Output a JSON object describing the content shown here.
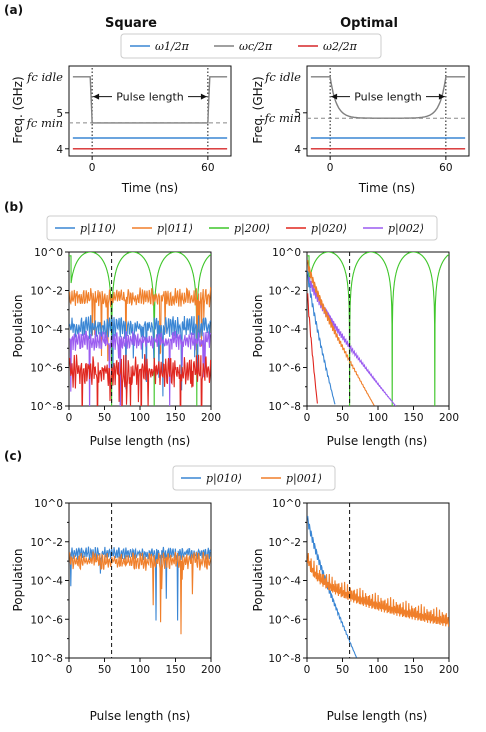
{
  "colors": {
    "blue": "#3a86d4",
    "gray": "#808080",
    "red": "#d62728",
    "orange": "#f07f2a",
    "green": "#3fc62a",
    "red2": "#e0261f",
    "purple": "#9b5cf0"
  },
  "labels": {
    "panel_a": "(a)",
    "panel_b": "(b)",
    "panel_c": "(c)",
    "title_square": "Square",
    "title_optimal": "Optimal",
    "ylabel_freq": "Freq. (GHz)",
    "ylabel_pop": "Population",
    "xlabel_time": "Time (ns)",
    "xlabel_pulse": "Pulse length (ns)",
    "pulse_length": "Pulse length",
    "fc_idle": "fc idle",
    "fc_min": "fc min"
  },
  "legend_a": [
    {
      "label": "ω1/2π",
      "color": "#3a86d4"
    },
    {
      "label": "ωc/2π",
      "color": "#808080"
    },
    {
      "label": "ω2/2π",
      "color": "#d62728"
    }
  ],
  "legend_b": [
    {
      "label": "p|110⟩",
      "color": "#3a86d4"
    },
    {
      "label": "p|011⟩",
      "color": "#f07f2a"
    },
    {
      "label": "p|200⟩",
      "color": "#3fc62a"
    },
    {
      "label": "p|020⟩",
      "color": "#e0261f"
    },
    {
      "label": "p|002⟩",
      "color": "#9b5cf0"
    }
  ],
  "legend_c": [
    {
      "label": "p|010⟩",
      "color": "#3a86d4"
    },
    {
      "label": "p|001⟩",
      "color": "#f07f2a"
    }
  ],
  "chart_data": [
    {
      "type": "line",
      "panel": "a-square",
      "title": "Square",
      "xlabel": "Time (ns)",
      "ylabel": "Freq. (GHz)",
      "xticks": [
        "0",
        "60"
      ],
      "yticks": [
        "4",
        "5"
      ],
      "ylim": [
        3.8,
        6.3
      ],
      "fc_idle": 6.0,
      "fc_min": 4.72,
      "series": [
        {
          "name": "ω1/2π",
          "value": 4.3
        },
        {
          "name": "ωc/2π",
          "shape": "square",
          "low": 4.72,
          "high": 6.0
        },
        {
          "name": "ω2/2π",
          "value": 4.0
        }
      ]
    },
    {
      "type": "line",
      "panel": "a-optimal",
      "title": "Optimal",
      "xlabel": "Time (ns)",
      "ylabel": "Freq. (GHz)",
      "xticks": [
        "0",
        "60"
      ],
      "yticks": [
        "4",
        "5"
      ],
      "ylim": [
        3.8,
        6.3
      ],
      "fc_idle": 6.0,
      "fc_min": 4.85,
      "series": [
        {
          "name": "ω1/2π",
          "value": 4.3
        },
        {
          "name": "ωc/2π",
          "shape": "optimal",
          "low": 4.85,
          "high": 6.0
        },
        {
          "name": "ω2/2π",
          "value": 4.0
        }
      ]
    },
    {
      "type": "line",
      "panel": "b-square",
      "yscale": "log",
      "xlabel": "Pulse length (ns)",
      "ylabel": "Population",
      "xlim": [
        0,
        200
      ],
      "xticks": [
        "0",
        "50",
        "100",
        "150",
        "200"
      ],
      "ylim_exp": [
        -8,
        0
      ],
      "yticks": [
        "10^0",
        "10^-2",
        "10^-4",
        "10^-6",
        "10^-8"
      ],
      "vline": 60,
      "series": [
        {
          "name": "p|200⟩",
          "kind": "dips",
          "dips": [
            60,
            120,
            180
          ]
        },
        {
          "name": "p|011⟩",
          "kind": "band",
          "level": -2.35,
          "amp": 0.3
        },
        {
          "name": "p|110⟩",
          "kind": "band",
          "level": -3.9,
          "amp": 0.35
        },
        {
          "name": "p|002⟩",
          "kind": "band",
          "level": -4.6,
          "amp": 0.3
        },
        {
          "name": "p|020⟩",
          "kind": "band",
          "level": -6.2,
          "amp": 0.5
        }
      ]
    },
    {
      "type": "line",
      "panel": "b-optimal",
      "yscale": "log",
      "xlabel": "Pulse length (ns)",
      "ylabel": "Population",
      "xlim": [
        0,
        200
      ],
      "xticks": [
        "0",
        "50",
        "100",
        "150",
        "200"
      ],
      "ylim_exp": [
        -8,
        0
      ],
      "yticks": [
        "10^0",
        "10^-2",
        "10^-4",
        "10^-6",
        "10^-8"
      ],
      "vline": 60,
      "series": [
        {
          "name": "p|200⟩",
          "kind": "dips",
          "dips": [
            60,
            120,
            180
          ]
        },
        {
          "name": "p|002⟩",
          "kind": "decay",
          "start": -1.5,
          "end": -8,
          "endx": 125
        },
        {
          "name": "p|011⟩",
          "kind": "decay",
          "start": -0.8,
          "end": -8,
          "endx": 95
        },
        {
          "name": "p|110⟩",
          "kind": "decay",
          "start": -1.2,
          "end": -8,
          "endx": 40
        },
        {
          "name": "p|020⟩",
          "kind": "decay",
          "start": -2.0,
          "end": -8,
          "endx": 15
        }
      ]
    },
    {
      "type": "line",
      "panel": "c-square",
      "yscale": "log",
      "xlabel": "Pulse length (ns)",
      "ylabel": "Population",
      "xlim": [
        0,
        200
      ],
      "xticks": [
        "0",
        "50",
        "100",
        "150",
        "200"
      ],
      "ylim_exp": [
        -8,
        0
      ],
      "yticks": [
        "10^0",
        "10^-2",
        "10^-4",
        "10^-6",
        "10^-8"
      ],
      "vline": 60,
      "series": [
        {
          "name": "p|010⟩",
          "kind": "band",
          "level": -2.6,
          "amp": 0.2
        },
        {
          "name": "p|001⟩",
          "kind": "band",
          "level": -3.0,
          "amp": 0.3
        }
      ]
    },
    {
      "type": "line",
      "panel": "c-optimal",
      "yscale": "log",
      "xlabel": "Pulse length (ns)",
      "ylabel": "Population",
      "xlim": [
        0,
        200
      ],
      "xticks": [
        "0",
        "50",
        "100",
        "150",
        "200"
      ],
      "ylim_exp": [
        -8,
        0
      ],
      "yticks": [
        "10^0",
        "10^-2",
        "10^-4",
        "10^-6",
        "10^-8"
      ],
      "vline": 60,
      "series": [
        {
          "name": "p|010⟩",
          "kind": "decay",
          "start": -1.0,
          "end": -8,
          "endx": 70
        },
        {
          "name": "p|001⟩",
          "kind": "slowdecay",
          "start": -1.6,
          "end": -5.5
        }
      ]
    }
  ]
}
